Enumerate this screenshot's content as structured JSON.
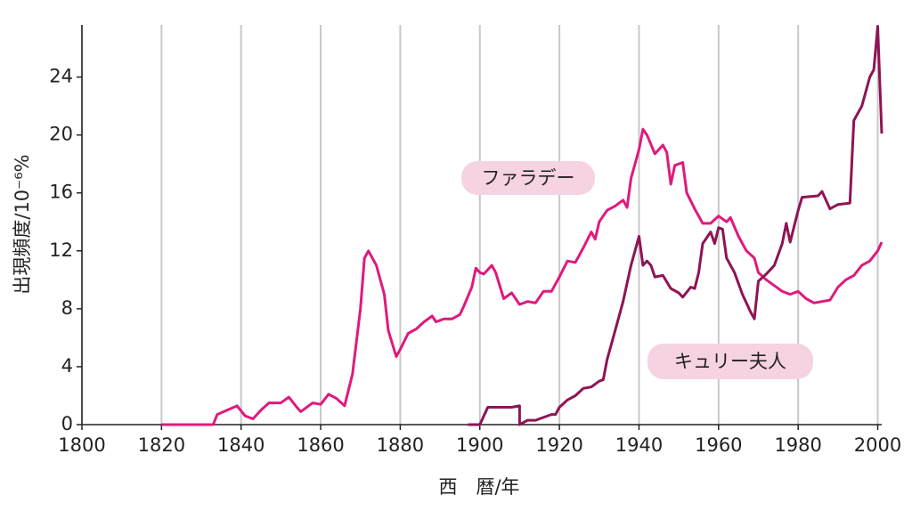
{
  "chart_data": {
    "type": "line",
    "xlabel": "西　暦/年",
    "ylabel": "出現頻度/10⁻⁶%",
    "xlim": [
      1800,
      2001
    ],
    "ylim": [
      0,
      27.6
    ],
    "xticks": [
      1800,
      1820,
      1840,
      1860,
      1880,
      1900,
      1920,
      1940,
      1960,
      1980,
      2000
    ],
    "yticks": [
      0,
      4,
      8,
      12,
      16,
      20,
      24
    ],
    "grid": "x",
    "series": [
      {
        "name": "ファラデー",
        "color": "#e0197d",
        "x": [
          1820,
          1833,
          1834,
          1839,
          1841,
          1843,
          1845,
          1847,
          1850,
          1852,
          1854,
          1855,
          1858,
          1860,
          1862,
          1864,
          1866,
          1868,
          1870,
          1871,
          1872,
          1874,
          1876,
          1877,
          1879,
          1880,
          1882,
          1884,
          1886,
          1888,
          1889,
          1891,
          1893,
          1895,
          1896,
          1898,
          1899,
          1900,
          1901,
          1903,
          1904,
          1906,
          1908,
          1910,
          1912,
          1914,
          1916,
          1918,
          1920,
          1922,
          1924,
          1926,
          1928,
          1929,
          1930,
          1932,
          1934,
          1936,
          1937,
          1938,
          1940,
          1941,
          1942,
          1944,
          1946,
          1947,
          1948,
          1949,
          1951,
          1952,
          1954,
          1956,
          1958,
          1960,
          1962,
          1963,
          1965,
          1967,
          1969,
          1970,
          1972,
          1974,
          1976,
          1978,
          1980,
          1982,
          1984,
          1986,
          1988,
          1990,
          1992,
          1994,
          1996,
          1998,
          2000,
          2001
        ],
        "values": [
          0,
          0,
          0.7,
          1.3,
          0.6,
          0.4,
          1.0,
          1.5,
          1.5,
          1.9,
          1.2,
          0.9,
          1.5,
          1.4,
          2.1,
          1.8,
          1.3,
          3.5,
          8,
          11.5,
          12,
          11,
          9,
          6.5,
          4.7,
          5.2,
          6.3,
          6.6,
          7.1,
          7.5,
          7.1,
          7.3,
          7.3,
          7.6,
          8.2,
          9.5,
          10.8,
          10.5,
          10.4,
          11.0,
          10.5,
          8.7,
          9.1,
          8.3,
          8.5,
          8.4,
          9.2,
          9.2,
          10.2,
          11.3,
          11.2,
          12.2,
          13.3,
          12.8,
          14.0,
          14.8,
          15.1,
          15.5,
          15.0,
          17.0,
          19.0,
          20.4,
          20.0,
          18.7,
          19.3,
          18.8,
          16.6,
          17.9,
          18.1,
          16.0,
          14.9,
          13.9,
          13.9,
          14.4,
          14.0,
          14.3,
          13.0,
          12.0,
          11.5,
          10.5,
          10.0,
          9.6,
          9.2,
          9.0,
          9.2,
          8.7,
          8.4,
          8.5,
          8.6,
          9.5,
          10.0,
          10.3,
          11.0,
          11.3,
          12.0,
          12.6
        ]
      },
      {
        "name": "キュリー夫人",
        "color": "#8e1454",
        "x": [
          1897,
          1900,
          1902,
          1908,
          1910,
          1910,
          1912,
          1914,
          1916,
          1918,
          1919,
          1920,
          1922,
          1924,
          1926,
          1928,
          1930,
          1931,
          1932,
          1934,
          1936,
          1938,
          1940,
          1941,
          1942,
          1943,
          1944,
          1946,
          1948,
          1950,
          1951,
          1953,
          1954,
          1955,
          1956,
          1958,
          1959,
          1960,
          1961,
          1962,
          1964,
          1966,
          1968,
          1969,
          1970,
          1972,
          1974,
          1976,
          1977,
          1978,
          1980,
          1981,
          1985,
          1986,
          1988,
          1990,
          1993,
          1994,
          1996,
          1998,
          1999,
          2000,
          2001
        ],
        "values": [
          0,
          0,
          1.2,
          1.2,
          1.3,
          0,
          0.3,
          0.3,
          0.5,
          0.7,
          0.7,
          1.2,
          1.7,
          2.0,
          2.5,
          2.6,
          3.0,
          3.1,
          4.5,
          6.5,
          8.5,
          11.0,
          13.0,
          11.0,
          11.3,
          11.0,
          10.2,
          10.3,
          9.4,
          9.1,
          8.8,
          9.5,
          9.4,
          10.5,
          12.5,
          13.3,
          12.5,
          13.6,
          13.5,
          11.5,
          10.5,
          9.0,
          7.8,
          7.3,
          9.9,
          10.4,
          11.0,
          12.5,
          13.9,
          12.6,
          14.8,
          15.7,
          15.8,
          16.1,
          14.9,
          15.2,
          15.3,
          21.0,
          22.0,
          24.0,
          24.5,
          27.5,
          20.1
        ]
      }
    ]
  }
}
